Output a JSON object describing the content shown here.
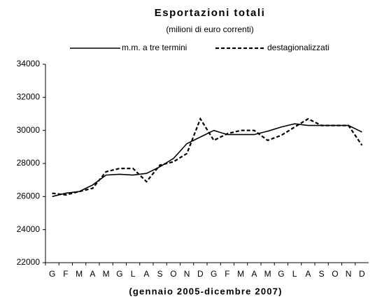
{
  "chart_data": {
    "type": "line",
    "title": "Esportazioni totali",
    "subtitle": "(milioni di euro correnti)",
    "x_label": "(gennaio 2005-dicembre 2007)",
    "categories": [
      "G",
      "F",
      "M",
      "A",
      "M",
      "G",
      "L",
      "A",
      "S",
      "O",
      "N",
      "D",
      "G",
      "F",
      "M",
      "A",
      "M",
      "G",
      "L",
      "A",
      "S",
      "O",
      "N",
      "D"
    ],
    "series": [
      {
        "name": "m.m. a tre termini",
        "color": "#000000",
        "dash": false,
        "values": [
          26000,
          26200,
          26300,
          26700,
          27300,
          27350,
          27300,
          27400,
          27800,
          28300,
          29200,
          29600,
          30000,
          29750,
          29750,
          29750,
          29950,
          30200,
          30400,
          30300,
          30300,
          30300,
          30300,
          29900
        ]
      },
      {
        "name": "destagionalizzati",
        "color": "#000000",
        "dash": true,
        "values": [
          26200,
          26100,
          26300,
          26500,
          27500,
          27700,
          27700,
          26900,
          27900,
          28100,
          28600,
          30700,
          29400,
          29800,
          30000,
          30000,
          29400,
          29700,
          30200,
          30700,
          30300,
          30300,
          30300,
          29100
        ]
      }
    ],
    "ylim": [
      22000,
      34000
    ],
    "yticks": [
      22000,
      24000,
      26000,
      28000,
      30000,
      32000,
      34000
    ],
    "grid": false
  }
}
